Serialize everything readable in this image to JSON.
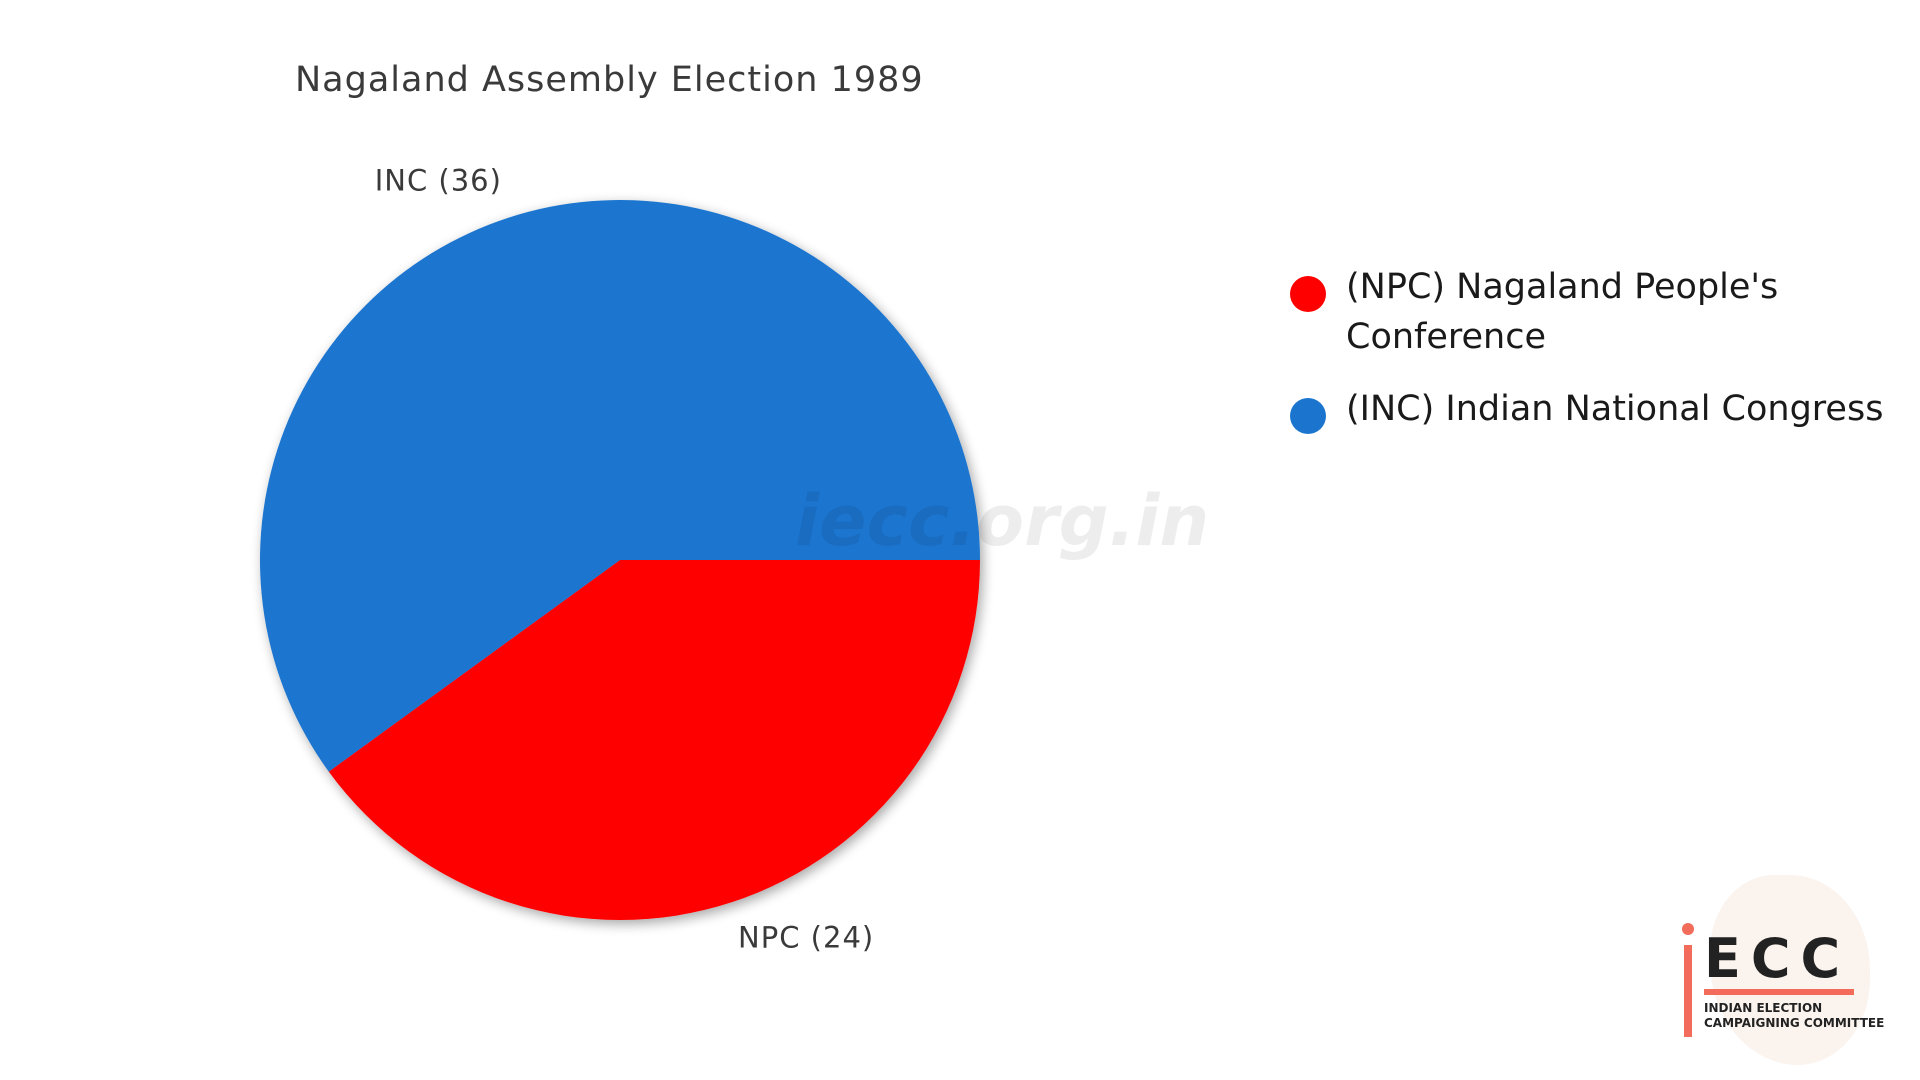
{
  "chart_data": {
    "type": "pie",
    "title": "Nagaland Assembly Election 1989",
    "slices": [
      {
        "key": "NPC",
        "label": "NPC (24)",
        "value": 24,
        "color": "#fe0000",
        "legend": "(NPC) Nagaland People's Conference"
      },
      {
        "key": "INC",
        "label": "INC (36)",
        "value": 36,
        "color": "#1b75cf",
        "legend": "(INC) Indian National Congress"
      }
    ],
    "legend_position": "right"
  },
  "watermark": "iecc.org.in",
  "logo": {
    "letters": "ECC",
    "subtitle_line1": "INDIAN ELECTION",
    "subtitle_line2": "CAMPAIGNING COMMITTEE"
  }
}
